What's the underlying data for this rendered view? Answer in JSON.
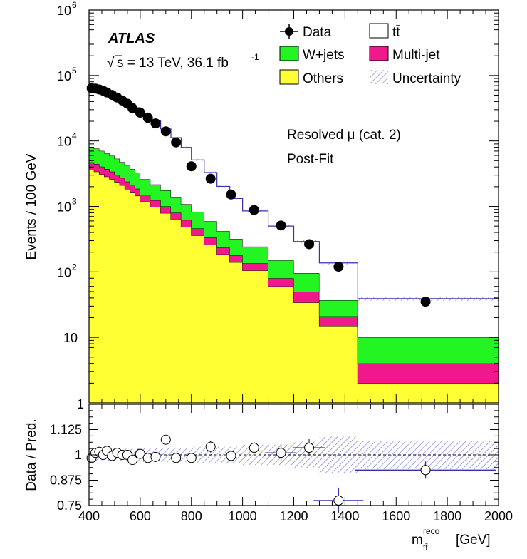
{
  "chart_data": {
    "type": "histogram",
    "experiment": "ATLAS",
    "energy_label": "s = 13 TeV, 36.1 fb",
    "sqrt_symbol": "√",
    "lumi_exponent": "-1",
    "region_label": "Resolved μ (cat. 2)",
    "fit_label": "Post-Fit",
    "ylabel": "Events / 100 GeV",
    "ratio_ylabel": "Data / Pred.",
    "xlabel_main": "m",
    "xlabel_sup": "reco",
    "xlabel_sub": "tt̄",
    "xlabel_unit": "[GeV]",
    "xlim": [
      400,
      2000
    ],
    "ylim": [
      1,
      1000000
    ],
    "ratio_ylim": [
      0.75,
      1.25
    ],
    "x_ticks": [
      "400",
      "600",
      "800",
      "1000",
      "1200",
      "1400",
      "1600",
      "1800",
      "2000"
    ],
    "y_tick_labels": [
      {
        "value": 10,
        "label": "10"
      },
      {
        "value": 100,
        "label": "10",
        "exp": "2"
      },
      {
        "value": 1000,
        "label": "10",
        "exp": "3"
      },
      {
        "value": 10000,
        "label": "10",
        "exp": "4"
      },
      {
        "value": 100000,
        "label": "10",
        "exp": "5"
      },
      {
        "value": 1000000,
        "label": "10",
        "exp": "6"
      }
    ],
    "ratio_ticks": [
      "0.75",
      "0.875",
      "1",
      "1.125"
    ],
    "bin_edges": [
      400,
      420,
      440,
      460,
      480,
      500,
      520,
      540,
      560,
      580,
      600,
      640,
      680,
      720,
      760,
      800,
      850,
      900,
      950,
      1000,
      1100,
      1200,
      1300,
      1450,
      2000
    ],
    "stack": {
      "others": [
        3600,
        3400,
        3100,
        2850,
        2600,
        2350,
        2100,
        1850,
        1650,
        1450,
        1180,
        980,
        790,
        630,
        490,
        360,
        260,
        185,
        140,
        105,
        60,
        34,
        15,
        2,
        2
      ],
      "multijet": [
        1100,
        1050,
        950,
        870,
        790,
        700,
        620,
        540,
        470,
        410,
        320,
        260,
        210,
        170,
        130,
        100,
        75,
        50,
        40,
        30,
        20,
        16,
        6,
        2,
        2
      ],
      "wjets": [
        3300,
        3200,
        3000,
        2780,
        2550,
        2300,
        2030,
        1780,
        1600,
        1400,
        1100,
        920,
        760,
        600,
        460,
        360,
        260,
        185,
        140,
        108,
        70,
        46,
        16,
        6,
        6
      ],
      "ttbar": [
        56000,
        55500,
        54200,
        52000,
        48500,
        44800,
        41000,
        37000,
        33000,
        29000,
        24000,
        18500,
        13500,
        9800,
        6900,
        4300,
        2700,
        1600,
        1000,
        610,
        350,
        195,
        100,
        29,
        29
      ]
    },
    "data_points": [
      {
        "x": 410,
        "y": 64000,
        "ratio": 0.985
      },
      {
        "x": 425,
        "y": 63000,
        "ratio": 1.01
      },
      {
        "x": 440,
        "y": 61000,
        "ratio": 1.015
      },
      {
        "x": 455,
        "y": 58500,
        "ratio": 1.0
      },
      {
        "x": 470,
        "y": 55000,
        "ratio": 1.02
      },
      {
        "x": 490,
        "y": 50500,
        "ratio": 0.995
      },
      {
        "x": 510,
        "y": 46000,
        "ratio": 1.01
      },
      {
        "x": 530,
        "y": 41500,
        "ratio": 1.0
      },
      {
        "x": 550,
        "y": 37000,
        "ratio": 1.0
      },
      {
        "x": 570,
        "y": 31500,
        "ratio": 0.975
      },
      {
        "x": 600,
        "y": 27000,
        "ratio": 1.005
      },
      {
        "x": 630,
        "y": 22500,
        "ratio": 0.985
      },
      {
        "x": 660,
        "y": 18500,
        "ratio": 0.99
      },
      {
        "x": 700,
        "y": 14000,
        "ratio": 1.075
      },
      {
        "x": 740,
        "y": 9500,
        "ratio": 0.985
      },
      {
        "x": 800,
        "y": 4100,
        "ratio": 0.985
      },
      {
        "x": 875,
        "y": 2650,
        "ratio": 1.04
      },
      {
        "x": 955,
        "y": 1520,
        "ratio": 0.995
      },
      {
        "x": 1045,
        "y": 880,
        "ratio": 1.035
      },
      {
        "x": 1150,
        "y": 510,
        "ratio": 1.01
      },
      {
        "x": 1260,
        "y": 265,
        "ratio": 1.035
      },
      {
        "x": 1375,
        "y": 120,
        "ratio": 0.775
      },
      {
        "x": 1715,
        "y": 35,
        "ratio": 0.925
      }
    ],
    "legend": {
      "data": "Data",
      "ttbar": "tt̄",
      "wjets": "W+jets",
      "multijet": "Multi-jet",
      "others": "Others",
      "uncertainty": "Uncertainty"
    },
    "colors": {
      "ttbar": "#ffffff",
      "wjets": "#22f522",
      "multijet": "#f0188c",
      "others": "#ffff33",
      "line": "#3333aa",
      "data": "#000000"
    }
  }
}
